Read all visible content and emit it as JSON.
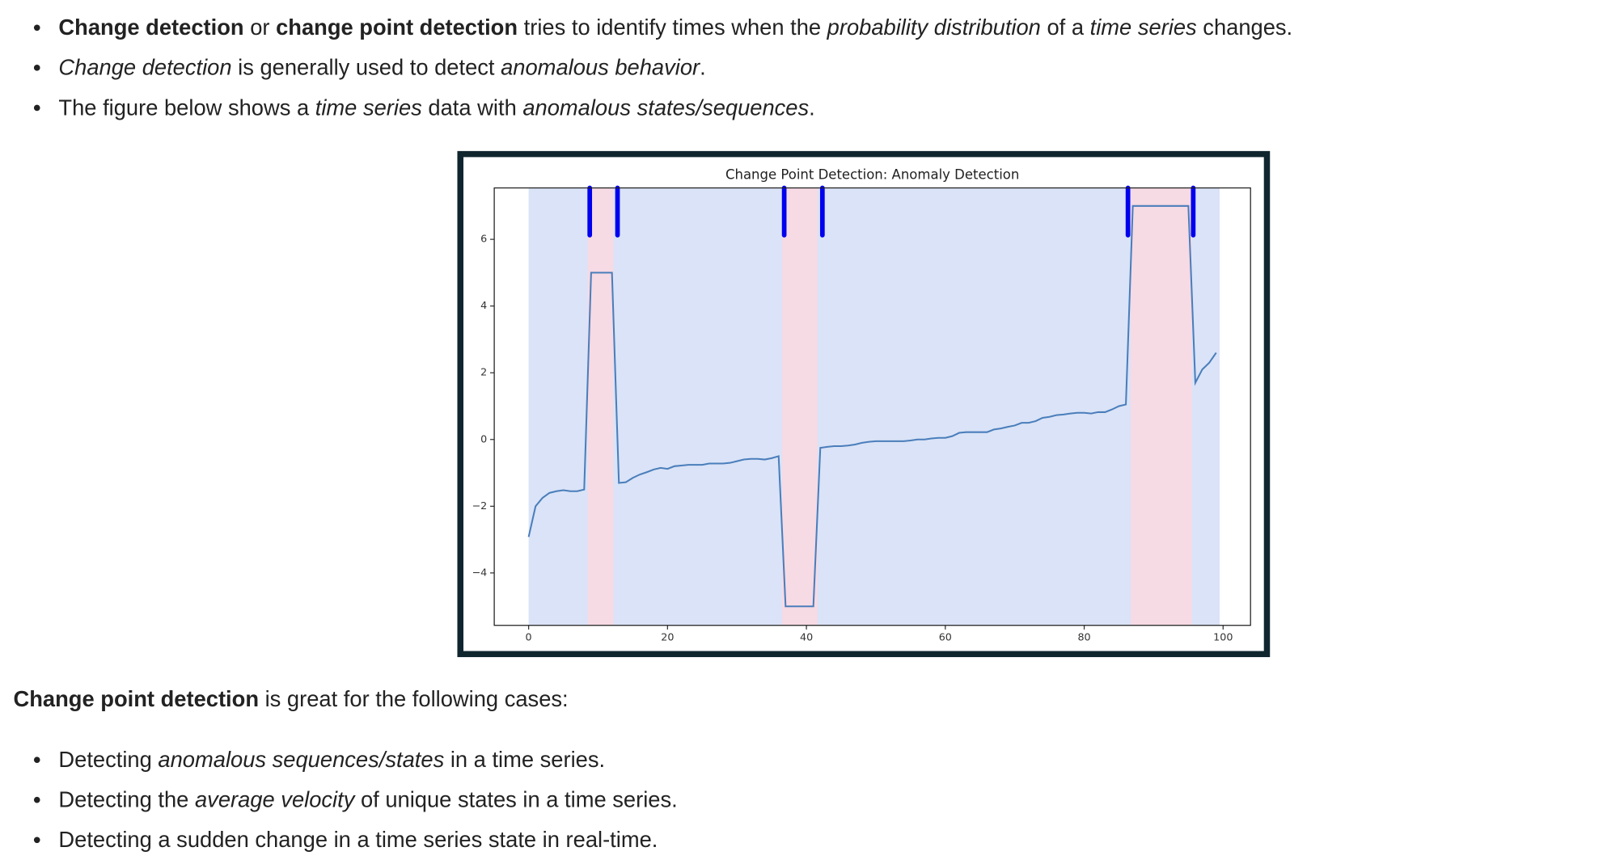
{
  "intro_list": [
    [
      {
        "text": "Change detection",
        "style": "bold"
      },
      {
        "text": " or "
      },
      {
        "text": "change point detection",
        "style": "bold"
      },
      {
        "text": " tries to identify times when the "
      },
      {
        "text": "probability distribution",
        "style": "italic"
      },
      {
        "text": " of a "
      },
      {
        "text": "time series",
        "style": "italic"
      },
      {
        "text": " changes."
      }
    ],
    [
      {
        "text": "Change detection",
        "style": "italic"
      },
      {
        "text": " is generally used to detect "
      },
      {
        "text": "anomalous behavior",
        "style": "italic"
      },
      {
        "text": "."
      }
    ],
    [
      {
        "text": "The figure below shows a "
      },
      {
        "text": "time series",
        "style": "italic"
      },
      {
        "text": " data with "
      },
      {
        "text": "anomalous states/sequences",
        "style": "italic"
      },
      {
        "text": "."
      }
    ]
  ],
  "chart_data": {
    "type": "line",
    "title": "Change Point Detection: Anomaly Detection",
    "x": [
      0,
      1,
      2,
      3,
      4,
      5,
      6,
      7,
      8,
      9,
      10,
      11,
      12,
      13,
      14,
      15,
      16,
      17,
      18,
      19,
      20,
      21,
      22,
      23,
      24,
      25,
      26,
      27,
      28,
      29,
      30,
      31,
      32,
      33,
      34,
      35,
      36,
      37,
      38,
      39,
      40,
      41,
      42,
      43,
      44,
      45,
      46,
      47,
      48,
      49,
      50,
      51,
      52,
      53,
      54,
      55,
      56,
      57,
      58,
      59,
      60,
      61,
      62,
      63,
      64,
      65,
      66,
      67,
      68,
      69,
      70,
      71,
      72,
      73,
      74,
      75,
      76,
      77,
      78,
      79,
      80,
      81,
      82,
      83,
      84,
      85,
      86,
      87,
      88,
      89,
      90,
      91,
      92,
      93,
      94,
      95,
      96,
      97,
      98,
      99
    ],
    "values": [
      -2.92,
      -2.0,
      -1.75,
      -1.6,
      -1.55,
      -1.52,
      -1.55,
      -1.55,
      -1.5,
      5,
      5,
      5,
      5,
      -1.3,
      -1.28,
      -1.15,
      -1.05,
      -0.98,
      -0.9,
      -0.85,
      -0.88,
      -0.8,
      -0.78,
      -0.76,
      -0.76,
      -0.76,
      -0.72,
      -0.72,
      -0.72,
      -0.7,
      -0.65,
      -0.6,
      -0.58,
      -0.58,
      -0.6,
      -0.56,
      -0.5,
      -5,
      -5,
      -5,
      -5,
      -5,
      -0.25,
      -0.22,
      -0.2,
      -0.2,
      -0.18,
      -0.15,
      -0.1,
      -0.07,
      -0.05,
      -0.05,
      -0.05,
      -0.05,
      -0.05,
      -0.03,
      0,
      0,
      0.03,
      0.05,
      0.05,
      0.1,
      0.2,
      0.22,
      0.22,
      0.22,
      0.22,
      0.3,
      0.33,
      0.38,
      0.42,
      0.5,
      0.5,
      0.55,
      0.65,
      0.68,
      0.73,
      0.75,
      0.78,
      0.8,
      0.8,
      0.78,
      0.82,
      0.82,
      0.9,
      1.0,
      1.05,
      7,
      7,
      7,
      7,
      7,
      7,
      7,
      7,
      7,
      1.7,
      2.1,
      2.3,
      2.6
    ],
    "color": "#4a7ebb",
    "regions": [
      {
        "start": 0,
        "end": 99.5,
        "color": "#dae3f7"
      },
      {
        "start": 8.5,
        "end": 12.2,
        "color": "#f6dae4"
      },
      {
        "start": 36.5,
        "end": 41.6,
        "color": "#f6dae4"
      },
      {
        "start": 86.7,
        "end": 95.5,
        "color": "#f6dae4"
      }
    ],
    "change_points": [
      8.8,
      12.8,
      36.8,
      42.3,
      86.3,
      95.7
    ],
    "change_point_color": "#0000ee",
    "xlim": [
      -4.95,
      103.95
    ],
    "ylim": [
      -5.57,
      7.54
    ],
    "xticks": [
      0,
      20,
      40,
      60,
      80,
      100
    ],
    "yticks": [
      {
        "value": -4,
        "label": "−4"
      },
      {
        "value": -2,
        "label": "−2"
      },
      0,
      2,
      4,
      6
    ]
  },
  "cases_heading": [
    {
      "text": "Change point detection",
      "style": "bold"
    },
    {
      "text": " is great for the following cases:"
    }
  ],
  "cases_list": [
    [
      {
        "text": "Detecting "
      },
      {
        "text": "anomalous sequences/states",
        "style": "italic"
      },
      {
        "text": " in a time series."
      }
    ],
    [
      {
        "text": "Detecting the "
      },
      {
        "text": "average velocity",
        "style": "italic"
      },
      {
        "text": " of unique states in a time series."
      }
    ],
    [
      {
        "text": "Detecting a sudden change in a time series state in real-time."
      }
    ]
  ]
}
